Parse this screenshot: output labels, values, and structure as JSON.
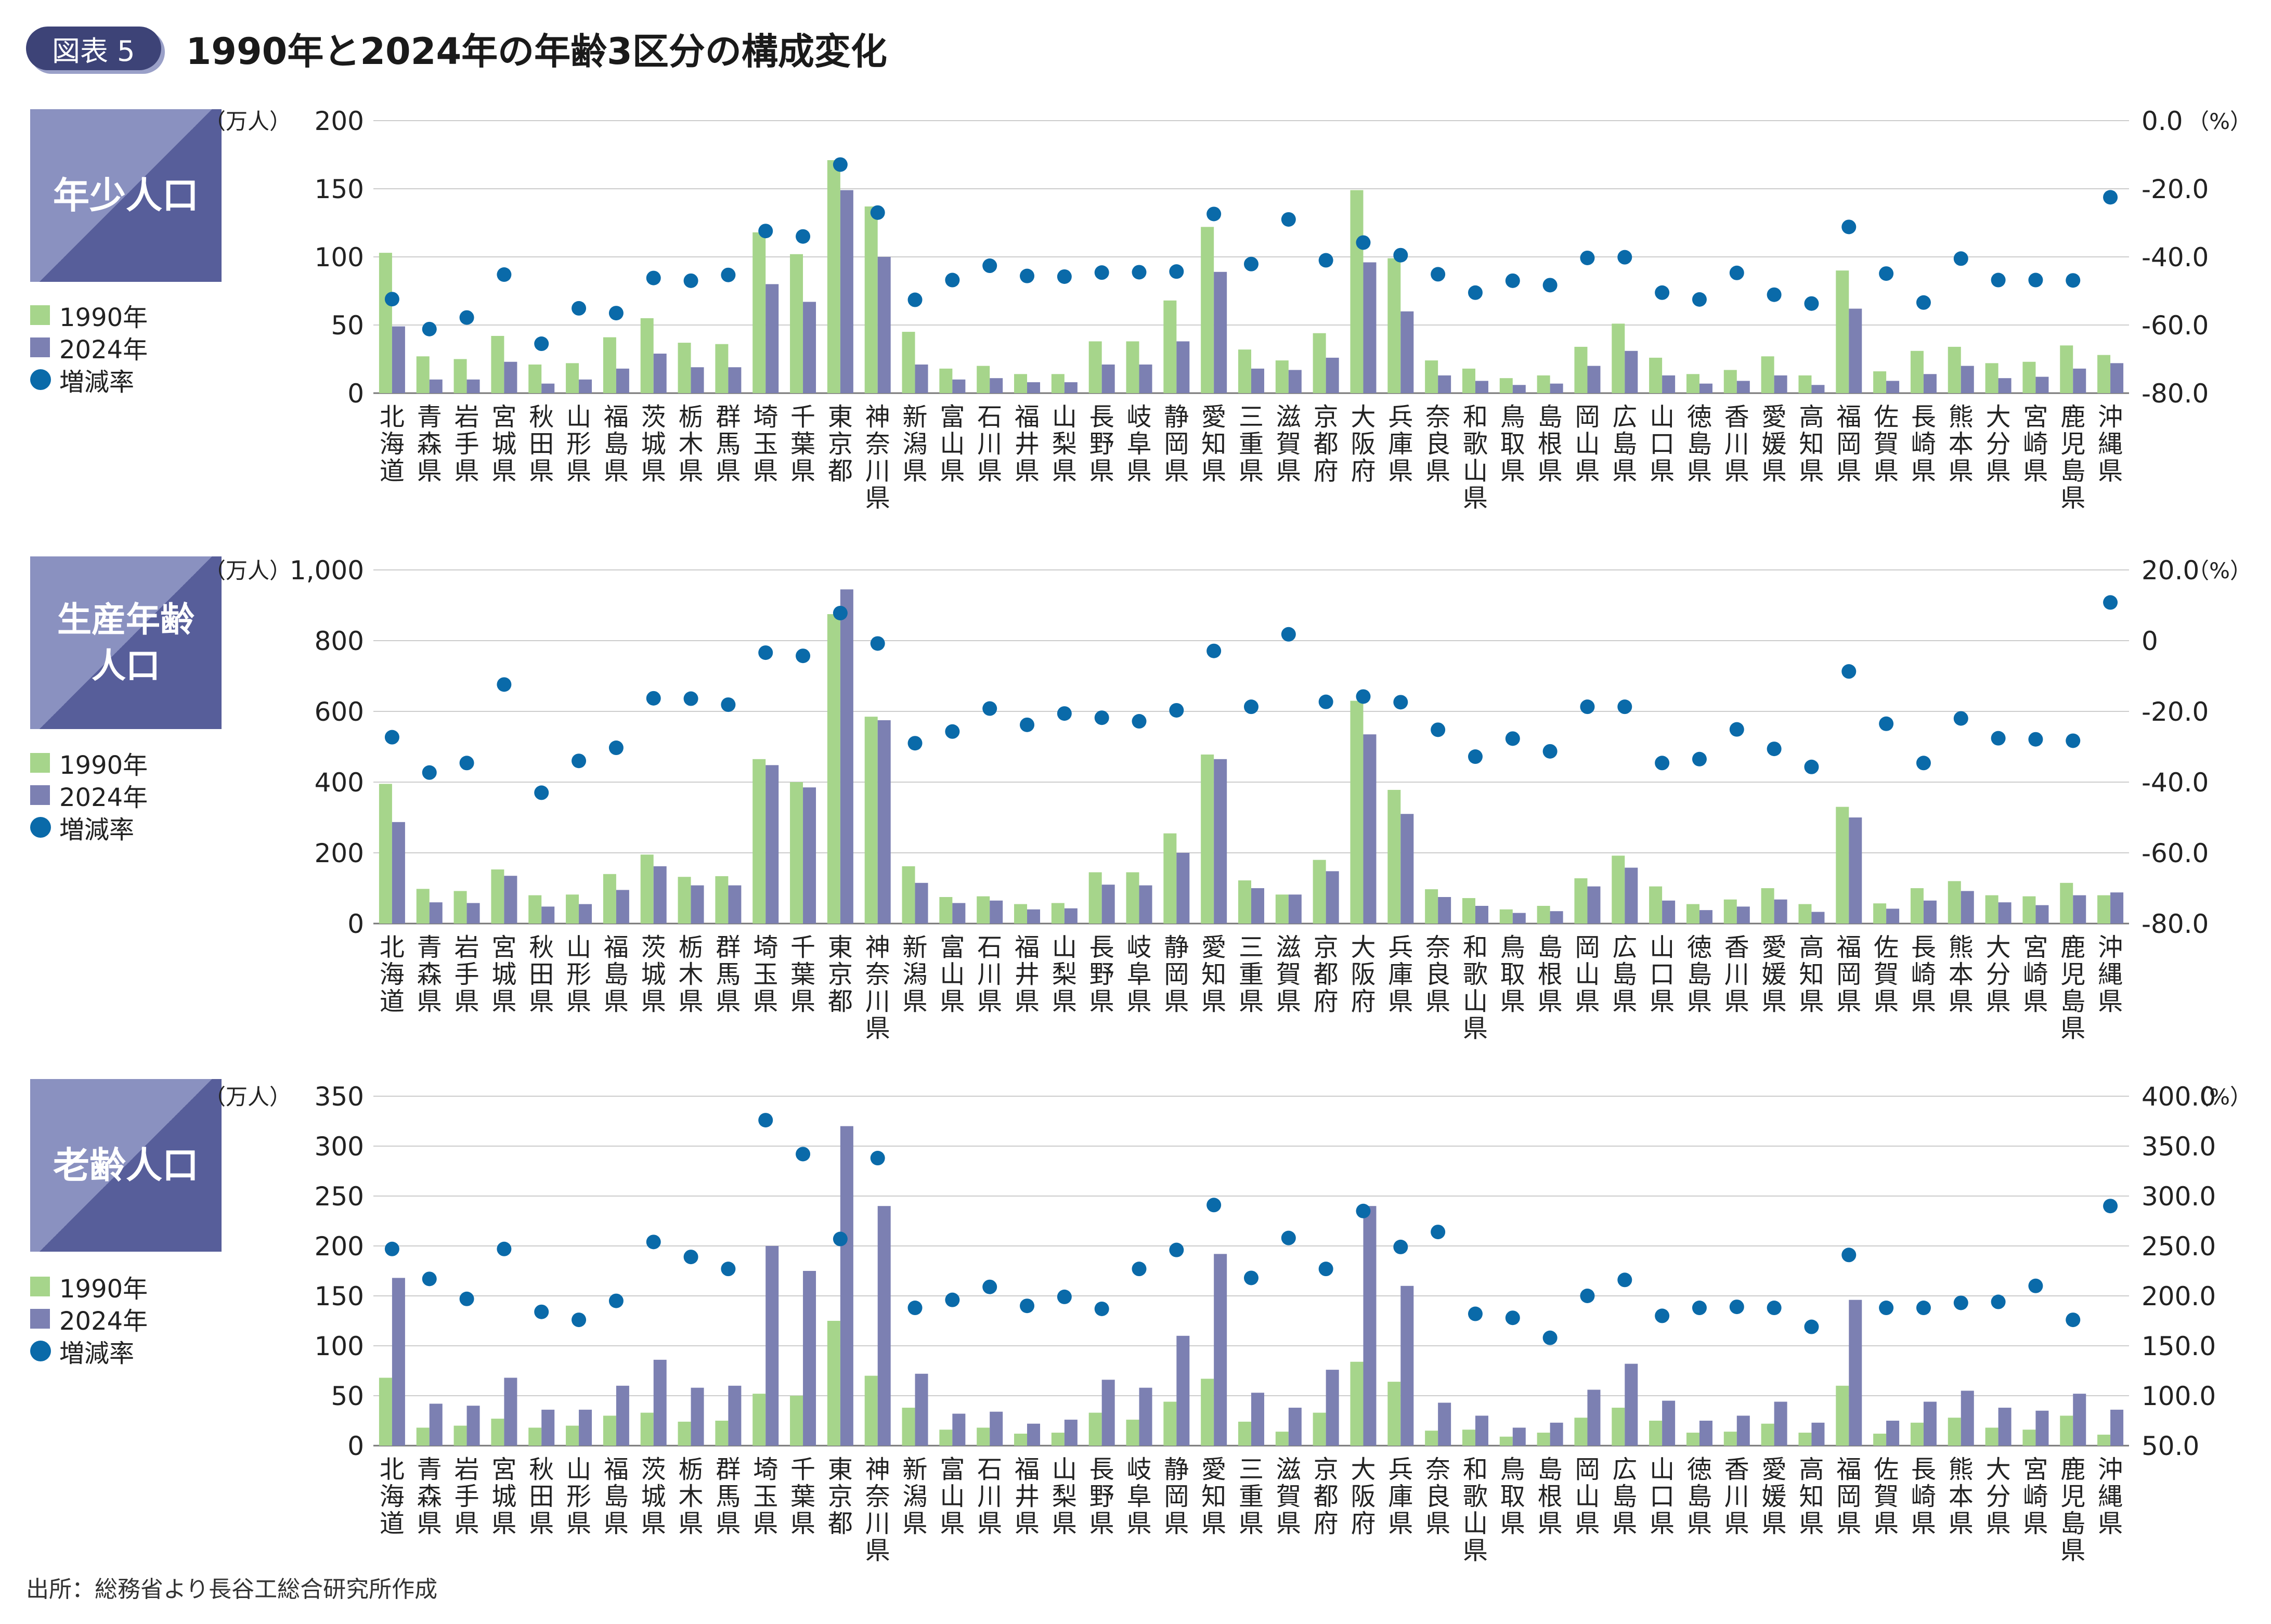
{
  "badge": "図表 5",
  "title": "1990年と2024年の年齢3区分の構成変化",
  "source": "出所：総務省より長谷工総合研究所作成",
  "legend": [
    "1990年",
    "2024年",
    "増減率"
  ],
  "colors": {
    "bar_1990": "#a6d58b",
    "bar_2024": "#7c80b2",
    "rate": "#0a6aa9",
    "badge": "#3d4377"
  },
  "prefectures": [
    "北海道",
    "青森県",
    "岩手県",
    "宮城県",
    "秋田県",
    "山形県",
    "福島県",
    "茨城県",
    "栃木県",
    "群馬県",
    "埼玉県",
    "千葉県",
    "東京都",
    "神奈川県",
    "新潟県",
    "富山県",
    "石川県",
    "福井県",
    "山梨県",
    "長野県",
    "岐阜県",
    "静岡県",
    "愛知県",
    "三重県",
    "滋賀県",
    "京都府",
    "大阪府",
    "兵庫県",
    "奈良県",
    "和歌山県",
    "鳥取県",
    "島根県",
    "岡山県",
    "広島県",
    "山口県",
    "徳島県",
    "香川県",
    "愛媛県",
    "高知県",
    "福岡県",
    "佐賀県",
    "長崎県",
    "熊本県",
    "大分県",
    "宮崎県",
    "鹿児島県",
    "沖縄県"
  ],
  "chart_data": [
    {
      "type": "bar",
      "title": "年少人口",
      "y_unit": "（万人）",
      "y2_unit": "（%）",
      "ylim": [
        0,
        200
      ],
      "yticks": [
        "0",
        "50",
        "100",
        "150",
        "200"
      ],
      "y2lim": [
        -80,
        0
      ],
      "y2ticks": [
        "-80.0",
        "-60.0",
        "-40.0",
        "-20.0",
        "0.0"
      ],
      "series": [
        {
          "name": "1990年",
          "values": [
            103,
            27,
            25,
            42,
            21,
            22,
            41,
            55,
            37,
            36,
            118,
            102,
            171,
            137,
            45,
            18,
            20,
            14,
            14,
            38,
            38,
            68,
            122,
            32,
            24,
            44,
            149,
            99,
            24,
            18,
            11,
            13,
            34,
            51,
            26,
            14,
            17,
            27,
            13,
            90,
            16,
            31,
            34,
            22,
            23,
            35,
            28
          ]
        },
        {
          "name": "2024年",
          "values": [
            49,
            10,
            10,
            23,
            7,
            10,
            18,
            29,
            19,
            19,
            80,
            67,
            149,
            100,
            21,
            10,
            11,
            8,
            8,
            21,
            21,
            38,
            89,
            18,
            17,
            26,
            96,
            60,
            13,
            9,
            6,
            7,
            20,
            31,
            13,
            7,
            9,
            13,
            6,
            62,
            9,
            14,
            20,
            11,
            12,
            18,
            22
          ]
        },
        {
          "name": "増減率",
          "values": [
            -52.4,
            -61.2,
            -57.8,
            -45.2,
            -65.5,
            -55.1,
            -56.5,
            -46.2,
            -47.0,
            -45.3,
            -32.4,
            -34.0,
            -12.9,
            -27.0,
            -52.6,
            -46.8,
            -42.6,
            -45.6,
            -45.8,
            -44.6,
            -44.5,
            -44.3,
            -27.4,
            -42.1,
            -29.0,
            -41.0,
            -35.8,
            -39.5,
            -45.1,
            -50.5,
            -47.0,
            -48.3,
            -40.3,
            -40.1,
            -50.5,
            -52.5,
            -44.7,
            -51.1,
            -53.7,
            -31.2,
            -44.9,
            -53.4,
            -40.5,
            -46.8,
            -46.8,
            -46.9,
            -22.5
          ]
        }
      ]
    },
    {
      "type": "bar",
      "title": "生産年齢人口",
      "y_unit": "（万人）",
      "y2_unit": "（%）",
      "ylim": [
        0,
        1000
      ],
      "yticks": [
        "0",
        "200",
        "400",
        "600",
        "800",
        "1,000"
      ],
      "y2lim": [
        -80,
        20
      ],
      "y2ticks": [
        "-80.0",
        "-60.0",
        "-40.0",
        "-20.0",
        "0",
        "20.0"
      ],
      "series": [
        {
          "name": "1990年",
          "values": [
            395,
            98,
            92,
            153,
            80,
            82,
            140,
            195,
            132,
            134,
            465,
            400,
            875,
            585,
            162,
            75,
            77,
            55,
            58,
            145,
            145,
            255,
            478,
            122,
            82,
            180,
            630,
            378,
            97,
            72,
            40,
            50,
            128,
            192,
            105,
            55,
            68,
            100,
            55,
            330,
            57,
            100,
            120,
            80,
            77,
            115,
            80
          ]
        },
        {
          "name": "2024年",
          "values": [
            287,
            60,
            58,
            135,
            48,
            55,
            95,
            162,
            108,
            108,
            448,
            385,
            945,
            575,
            115,
            58,
            65,
            40,
            43,
            110,
            108,
            200,
            465,
            100,
            82,
            148,
            535,
            310,
            75,
            50,
            30,
            35,
            105,
            158,
            65,
            38,
            48,
            68,
            33,
            300,
            42,
            65,
            92,
            60,
            52,
            80,
            88
          ]
        },
        {
          "name": "増減率",
          "values": [
            -27.3,
            -37.3,
            -34.6,
            -12.4,
            -43.0,
            -34.0,
            -30.3,
            -16.3,
            -16.4,
            -18.1,
            -3.4,
            -4.3,
            7.8,
            -0.8,
            -29.0,
            -25.7,
            -19.2,
            -23.8,
            -20.6,
            -21.8,
            -22.8,
            -19.7,
            -2.9,
            -18.7,
            1.8,
            -17.3,
            -15.8,
            -17.4,
            -25.2,
            -32.8,
            -27.7,
            -31.3,
            -18.7,
            -18.7,
            -34.6,
            -33.5,
            -25.1,
            -30.6,
            -35.7,
            -8.7,
            -23.5,
            -34.6,
            -22.0,
            -27.6,
            -27.9,
            -28.3,
            10.8
          ]
        }
      ]
    },
    {
      "type": "bar",
      "title": "老齢人口",
      "y_unit": "（万人）",
      "y2_unit": "（%）",
      "ylim": [
        0,
        350
      ],
      "yticks": [
        "0",
        "50",
        "100",
        "150",
        "200",
        "250",
        "300",
        "350"
      ],
      "y2lim": [
        50,
        400
      ],
      "y2ticks": [
        "50.0",
        "100.0",
        "150.0",
        "200.0",
        "250.0",
        "300.0",
        "350.0",
        "400.0"
      ],
      "series": [
        {
          "name": "1990年",
          "values": [
            68,
            18,
            20,
            27,
            18,
            20,
            30,
            33,
            24,
            25,
            52,
            50,
            125,
            70,
            38,
            16,
            18,
            12,
            13,
            33,
            26,
            44,
            67,
            24,
            14,
            33,
            84,
            64,
            15,
            16,
            9,
            13,
            28,
            38,
            25,
            13,
            14,
            22,
            13,
            60,
            12,
            23,
            28,
            18,
            16,
            30,
            11
          ]
        },
        {
          "name": "2024年",
          "values": [
            168,
            42,
            40,
            68,
            36,
            36,
            60,
            86,
            58,
            60,
            200,
            175,
            320,
            240,
            72,
            32,
            34,
            22,
            26,
            66,
            58,
            110,
            192,
            53,
            38,
            76,
            240,
            160,
            43,
            30,
            18,
            23,
            56,
            82,
            45,
            25,
            30,
            44,
            23,
            146,
            25,
            44,
            55,
            38,
            35,
            52,
            36
          ]
        },
        {
          "name": "増減率",
          "values": [
            247,
            217,
            197,
            247,
            184,
            176,
            195,
            254,
            239,
            227,
            376,
            342,
            257,
            338,
            188,
            196,
            209,
            190,
            199,
            187,
            227,
            246,
            291,
            218,
            258,
            227,
            285,
            249,
            264,
            182,
            178,
            158,
            200,
            216,
            180,
            188,
            189,
            188,
            169,
            241,
            188,
            188,
            193,
            194,
            210,
            176,
            290
          ]
        }
      ]
    }
  ]
}
